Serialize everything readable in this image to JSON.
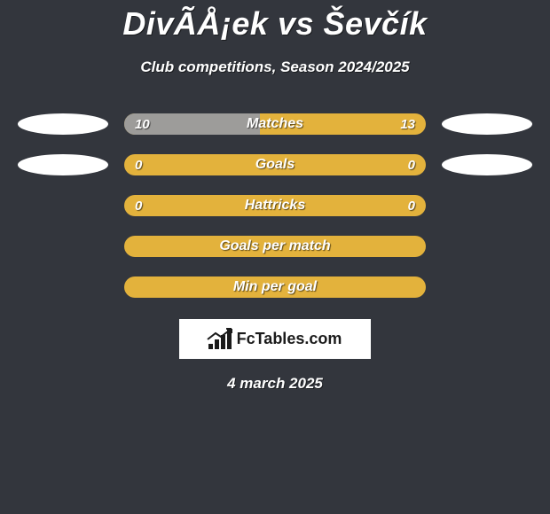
{
  "header": {
    "title": "DivÃÅ¡ek vs Ševčík",
    "subtitle": "Club competitions, Season 2024/2025"
  },
  "colors": {
    "background": "#33363d",
    "bar_accent": "#e3b23c",
    "bar_fill_alt": "#9d9c9a",
    "text": "#ffffff",
    "logo_bg": "#ffffff",
    "logo_fg": "#1b1b1b"
  },
  "rows": [
    {
      "label": "Matches",
      "left_value": "10",
      "right_value": "13",
      "left_fill_pct": 45,
      "left_fill_color": "#9d9c9a",
      "bar_bg": "#e3b23c",
      "show_ellipses": true
    },
    {
      "label": "Goals",
      "left_value": "0",
      "right_value": "0",
      "left_fill_pct": 0,
      "left_fill_color": "#9d9c9a",
      "bar_bg": "#e3b23c",
      "show_ellipses": true
    },
    {
      "label": "Hattricks",
      "left_value": "0",
      "right_value": "0",
      "left_fill_pct": 0,
      "left_fill_color": "#9d9c9a",
      "bar_bg": "#e3b23c",
      "show_ellipses": false
    },
    {
      "label": "Goals per match",
      "left_value": "",
      "right_value": "",
      "left_fill_pct": 0,
      "left_fill_color": "#9d9c9a",
      "bar_bg": "#e3b23c",
      "show_ellipses": false
    },
    {
      "label": "Min per goal",
      "left_value": "",
      "right_value": "",
      "left_fill_pct": 0,
      "left_fill_color": "#9d9c9a",
      "bar_bg": "#e3b23c",
      "show_ellipses": false
    }
  ],
  "logo": {
    "text": "FcTables.com"
  },
  "footer": {
    "date": "4 march 2025"
  }
}
